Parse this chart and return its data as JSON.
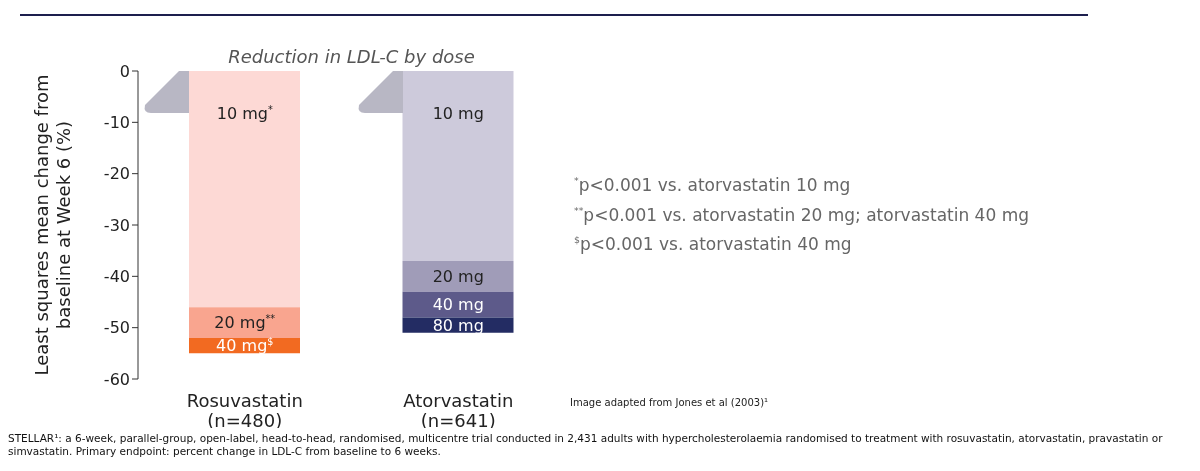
{
  "chart_data": {
    "type": "bar",
    "stacked": true,
    "title": "Reduction in LDL-C by dose",
    "ylabel": "Least squares mean change from baseline at Week 6 (%)",
    "categories": [
      "Rosuvastatin\n(n=480)",
      "Atorvastatin\n(n=641)"
    ],
    "series": [
      {
        "colors": [
          "#fdd9d5",
          "#cdcadb"
        ],
        "values": [
          -46,
          -37
        ]
      },
      {
        "colors": [
          "#f9a58f",
          "#a09cb8"
        ],
        "values": [
          -6,
          -6
        ]
      },
      {
        "colors": [
          "#f26a21",
          "#5d5a8a"
        ],
        "values": [
          -3,
          -5
        ]
      },
      {
        "colors": [
          "#232c63",
          "#232c63"
        ],
        "values": [
          null,
          -3
        ]
      }
    ],
    "ylim": [
      -60,
      0
    ],
    "yticks": [
      0,
      -10,
      -20,
      -30,
      -40,
      -50,
      -60
    ],
    "annotations": [
      "10 mg$^{*}$",
      "10 mg",
      {
        "text": "20 mg$^{**}$",
        "x": "Rosuvastatin\n(n=480)",
        "y": -52
      },
      {
        "text": "40 mg$^{$}$",
        "x": "Rosuvastatin\n(n=480)",
        "y": -55
      },
      {
        "text": "20 mg",
        "x": "Atorvastatin\n(n=641)",
        "y": -43
      },
      {
        "text": "40 mg",
        "x": "Atorvastatin\n(n=641)",
        "y": -48
      },
      {
        "text": "80 mg",
        "x": "Atorvastatin\n(n=641)",
        "y": -51
      },
      "$^{*}$p<0.001 vs. atorvastatin 10 mg",
      "$^{**}$p<0.001 vs. atorvastatin 20 mg; atorvastatin 40 mg",
      "$^{$}$p<0.001 vs. atorvastatin 40 mg",
      "Image adapted from Jones et al (2003)¹",
      "STELLAR¹: a 6-week, parallel-group, open-label, head-to-head, randomised, multicentre trial conducted in 2,431 adults with hypercholesterolaemia randomised to treatment with rosuvastatin, atorvastatin, pravastatin or simvastatin. Primary endpoint: percent change in LDL-C from baseline to 6 weeks."
    ]
  }
}
